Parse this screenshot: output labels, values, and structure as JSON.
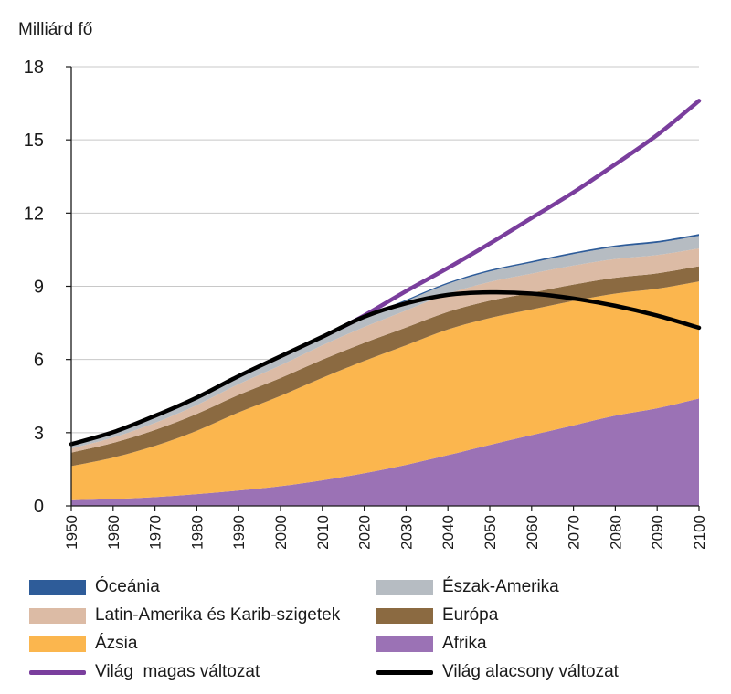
{
  "chart_data": {
    "type": "area",
    "ylabel": "Milliárd fő",
    "xlabel": "",
    "ylim": [
      0,
      18
    ],
    "xlim": [
      1950,
      2100
    ],
    "yticks": [
      0,
      3,
      6,
      9,
      12,
      15,
      18
    ],
    "ytick_labels": [
      "0",
      "3",
      "6",
      "9",
      "12",
      "15",
      "18"
    ],
    "xticks": [
      1950,
      1960,
      1970,
      1980,
      1990,
      2000,
      2010,
      2020,
      2030,
      2040,
      2050,
      2060,
      2070,
      2080,
      2090,
      2100
    ],
    "xtick_labels": [
      "1950",
      "1960",
      "1970",
      "1980",
      "1990",
      "2000",
      "2010",
      "2020",
      "2030",
      "2040",
      "2050",
      "2060",
      "2070",
      "2080",
      "2090",
      "2100"
    ],
    "grid": "horizontal",
    "stacked": true,
    "x": [
      1950,
      1960,
      1970,
      1980,
      1990,
      2000,
      2010,
      2020,
      2030,
      2040,
      2050,
      2060,
      2070,
      2080,
      2090,
      2100
    ],
    "series": [
      {
        "name": "Afrika",
        "color": "#9b72b5",
        "values": [
          0.23,
          0.28,
          0.36,
          0.48,
          0.63,
          0.81,
          1.05,
          1.34,
          1.68,
          2.08,
          2.5,
          2.9,
          3.3,
          3.7,
          4.0,
          4.4
        ]
      },
      {
        "name": "Ázsia",
        "color": "#fbb64e",
        "values": [
          1.4,
          1.7,
          2.1,
          2.6,
          3.2,
          3.7,
          4.2,
          4.6,
          4.9,
          5.15,
          5.2,
          5.15,
          5.1,
          5.0,
          4.9,
          4.8
        ]
      },
      {
        "name": "Európa",
        "color": "#8b6a41",
        "values": [
          0.55,
          0.6,
          0.65,
          0.69,
          0.72,
          0.73,
          0.74,
          0.74,
          0.73,
          0.72,
          0.71,
          0.69,
          0.67,
          0.65,
          0.63,
          0.62
        ]
      },
      {
        "name": "Latin-Amerika és Karib-szigetek",
        "color": "#dcbba5",
        "values": [
          0.17,
          0.22,
          0.29,
          0.36,
          0.44,
          0.52,
          0.59,
          0.65,
          0.7,
          0.74,
          0.77,
          0.78,
          0.78,
          0.77,
          0.75,
          0.73
        ]
      },
      {
        "name": "Észak-Amerika",
        "color": "#b6bcc2",
        "values": [
          0.17,
          0.2,
          0.23,
          0.25,
          0.28,
          0.31,
          0.34,
          0.37,
          0.39,
          0.41,
          0.43,
          0.45,
          0.47,
          0.49,
          0.5,
          0.52
        ]
      },
      {
        "name": "Óceánia",
        "color": "#2e5c99",
        "values": [
          0.013,
          0.016,
          0.02,
          0.023,
          0.027,
          0.031,
          0.037,
          0.043,
          0.048,
          0.053,
          0.057,
          0.061,
          0.064,
          0.067,
          0.07,
          0.072
        ]
      }
    ],
    "lines": [
      {
        "name": "Világ  magas változat",
        "color": "#7a3e9d",
        "x": [
          2015,
          2020,
          2030,
          2040,
          2050,
          2060,
          2070,
          2080,
          2090,
          2100
        ],
        "values": [
          7.35,
          7.8,
          8.8,
          9.75,
          10.75,
          11.8,
          12.85,
          14.0,
          15.2,
          16.6
        ]
      },
      {
        "name": "Világ alacsony változat",
        "color": "#000000",
        "x": [
          1950,
          1960,
          1970,
          1980,
          1990,
          2000,
          2010,
          2020,
          2030,
          2040,
          2050,
          2060,
          2070,
          2080,
          2090,
          2100
        ],
        "values": [
          2.53,
          3.02,
          3.69,
          4.44,
          5.32,
          6.13,
          6.93,
          7.75,
          8.3,
          8.65,
          8.75,
          8.7,
          8.5,
          8.2,
          7.8,
          7.3
        ]
      }
    ],
    "legend_position": "bottom"
  },
  "legend": {
    "items": [
      {
        "label": "Óceánia",
        "color": "#2e5c99",
        "kind": "patch"
      },
      {
        "label": "Észak-Amerika",
        "color": "#b6bcc2",
        "kind": "patch"
      },
      {
        "label": "Latin-Amerika és Karib-szigetek",
        "color": "#dcbba5",
        "kind": "patch"
      },
      {
        "label": "Európa",
        "color": "#8b6a41",
        "kind": "patch"
      },
      {
        "label": "Ázsia",
        "color": "#fbb64e",
        "kind": "patch"
      },
      {
        "label": "Afrika",
        "color": "#9b72b5",
        "kind": "patch"
      },
      {
        "label": "Világ  magas változat",
        "color": "#7a3e9d",
        "kind": "line"
      },
      {
        "label": "Világ alacsony változat",
        "color": "#000000",
        "kind": "line"
      }
    ]
  }
}
